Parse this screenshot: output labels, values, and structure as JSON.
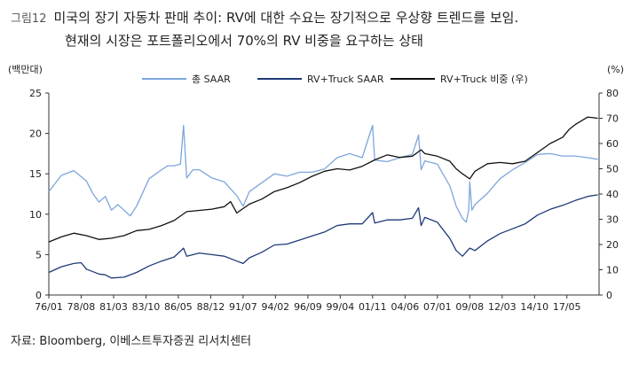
{
  "caption": {
    "number": "그림12",
    "line1": "미국의 장기 자동차 판매 추이: RV에 대한 수요는 장기적으로 우상향 트렌드를 보임.",
    "line2": "현재의 시장은 포트폴리오에서 70%의 RV 비중을 요구하는 상태"
  },
  "source": "자료: Bloomberg, 이베스트투자증권 리서치센터",
  "colors": {
    "total": "#7ea6dc",
    "rv": "#1f3a78",
    "share": "#111111"
  },
  "chart_data": {
    "type": "line",
    "ylabel_left": "(백만대)",
    "ylabel_right": "(%)",
    "ylim_left": [
      0,
      25
    ],
    "ylim_right": [
      0,
      80
    ],
    "yticks_left": [
      0,
      5,
      10,
      15,
      20,
      25
    ],
    "yticks_right": [
      0,
      10,
      20,
      30,
      40,
      50,
      60,
      70,
      80
    ],
    "xlim": [
      1976.0,
      2019.9
    ],
    "xtick_labels": [
      "76/01",
      "78/08",
      "81/03",
      "83/10",
      "86/05",
      "88/12",
      "91/07",
      "94/02",
      "96/09",
      "99/04",
      "01/11",
      "04/06",
      "07/01",
      "09/08",
      "12/03",
      "14/10",
      "17/05"
    ],
    "xtick_values": [
      1976.0,
      1978.58,
      1981.17,
      1983.75,
      1986.33,
      1988.92,
      1991.5,
      1994.08,
      1996.67,
      1999.25,
      2001.83,
      2004.42,
      2007.0,
      2009.58,
      2012.17,
      2014.75,
      2017.33
    ],
    "legend_position": "top",
    "grid": false,
    "series": [
      {
        "name": "총 SAAR",
        "axis": "left",
        "x": [
          1976.0,
          1977.0,
          1978.0,
          1979.0,
          1979.5,
          1980.0,
          1980.5,
          1981.0,
          1981.5,
          1982.0,
          1982.5,
          1983.0,
          1984.0,
          1985.0,
          1985.5,
          1986.0,
          1986.5,
          1986.75,
          1987.0,
          1987.5,
          1988.0,
          1989.0,
          1990.0,
          1991.0,
          1991.5,
          1992.0,
          1993.0,
          1994.0,
          1995.0,
          1996.0,
          1997.0,
          1998.0,
          1999.0,
          2000.0,
          2001.0,
          2001.83,
          2002.0,
          2003.0,
          2004.0,
          2005.0,
          2005.5,
          2005.7,
          2006.0,
          2007.0,
          2008.0,
          2008.5,
          2009.0,
          2009.3,
          2009.5,
          2009.58,
          2009.75,
          2010.0,
          2011.0,
          2012.0,
          2013.0,
          2014.0,
          2015.0,
          2016.0,
          2017.0,
          2018.0,
          2019.0,
          2019.8
        ],
        "values": [
          12.8,
          14.8,
          15.4,
          14.1,
          12.6,
          11.5,
          12.2,
          10.5,
          11.2,
          10.5,
          9.8,
          11.0,
          14.4,
          15.5,
          16.0,
          16.0,
          16.2,
          21.0,
          14.5,
          15.5,
          15.5,
          14.5,
          14.0,
          12.3,
          11.0,
          12.8,
          13.9,
          15.0,
          14.7,
          15.2,
          15.2,
          15.6,
          17.0,
          17.5,
          17.0,
          21.0,
          16.7,
          16.5,
          17.0,
          17.4,
          19.8,
          15.5,
          16.6,
          16.2,
          13.5,
          11.0,
          9.5,
          9.0,
          10.5,
          14.0,
          10.5,
          11.2,
          12.6,
          14.4,
          15.5,
          16.4,
          17.4,
          17.5,
          17.2,
          17.2,
          17.0,
          16.8
        ]
      },
      {
        "name": "RV+Truck SAAR",
        "axis": "left",
        "x": [
          1976.0,
          1977.0,
          1978.0,
          1978.58,
          1979.0,
          1980.0,
          1980.5,
          1981.0,
          1982.0,
          1983.0,
          1984.0,
          1985.0,
          1986.0,
          1986.75,
          1987.0,
          1988.0,
          1989.0,
          1990.0,
          1991.0,
          1991.5,
          1992.0,
          1993.0,
          1994.0,
          1995.0,
          1996.0,
          1997.0,
          1998.0,
          1999.0,
          2000.0,
          2001.0,
          2001.83,
          2002.0,
          2003.0,
          2004.0,
          2005.0,
          2005.5,
          2005.7,
          2006.0,
          2007.0,
          2008.0,
          2008.5,
          2009.0,
          2009.58,
          2010.0,
          2011.0,
          2012.0,
          2013.0,
          2014.0,
          2015.0,
          2016.0,
          2017.0,
          2018.0,
          2019.0,
          2019.8
        ],
        "values": [
          2.8,
          3.5,
          3.9,
          4.0,
          3.2,
          2.6,
          2.5,
          2.1,
          2.2,
          2.8,
          3.6,
          4.2,
          4.7,
          5.8,
          4.8,
          5.2,
          5.0,
          4.8,
          4.2,
          3.9,
          4.6,
          5.3,
          6.2,
          6.3,
          6.8,
          7.3,
          7.8,
          8.6,
          8.8,
          8.8,
          10.2,
          8.9,
          9.3,
          9.3,
          9.5,
          10.8,
          8.6,
          9.6,
          9.0,
          7.0,
          5.5,
          4.8,
          5.8,
          5.5,
          6.7,
          7.6,
          8.2,
          8.8,
          9.9,
          10.6,
          11.1,
          11.7,
          12.2,
          12.4
        ]
      },
      {
        "name": "RV+Truck 비중 (우)",
        "axis": "right",
        "x": [
          1976.0,
          1977.0,
          1978.0,
          1979.0,
          1980.0,
          1981.0,
          1982.0,
          1983.0,
          1984.0,
          1985.0,
          1986.0,
          1987.0,
          1988.0,
          1989.0,
          1990.0,
          1990.5,
          1991.0,
          1992.0,
          1993.0,
          1994.0,
          1995.0,
          1996.0,
          1997.0,
          1998.0,
          1999.0,
          2000.0,
          2001.0,
          2002.0,
          2003.0,
          2004.0,
          2005.0,
          2005.7,
          2006.0,
          2007.0,
          2008.0,
          2008.5,
          2009.0,
          2009.58,
          2010.0,
          2011.0,
          2012.0,
          2013.0,
          2014.0,
          2015.0,
          2016.0,
          2017.0,
          2017.5,
          2018.0,
          2019.0,
          2019.8
        ],
        "values": [
          21.0,
          23.0,
          24.5,
          23.5,
          22.0,
          22.5,
          23.5,
          25.5,
          26.0,
          27.5,
          29.5,
          33.0,
          33.5,
          34.0,
          35.0,
          37.0,
          32.5,
          36.0,
          38.0,
          41.0,
          42.5,
          44.5,
          47.0,
          49.0,
          50.0,
          49.5,
          51.0,
          53.5,
          55.5,
          54.5,
          55.0,
          57.5,
          56.0,
          55.0,
          53.0,
          50.0,
          48.0,
          46.0,
          49.0,
          52.0,
          52.5,
          52.0,
          53.0,
          56.5,
          60.0,
          62.5,
          65.5,
          67.5,
          70.5,
          70.0
        ]
      }
    ]
  }
}
